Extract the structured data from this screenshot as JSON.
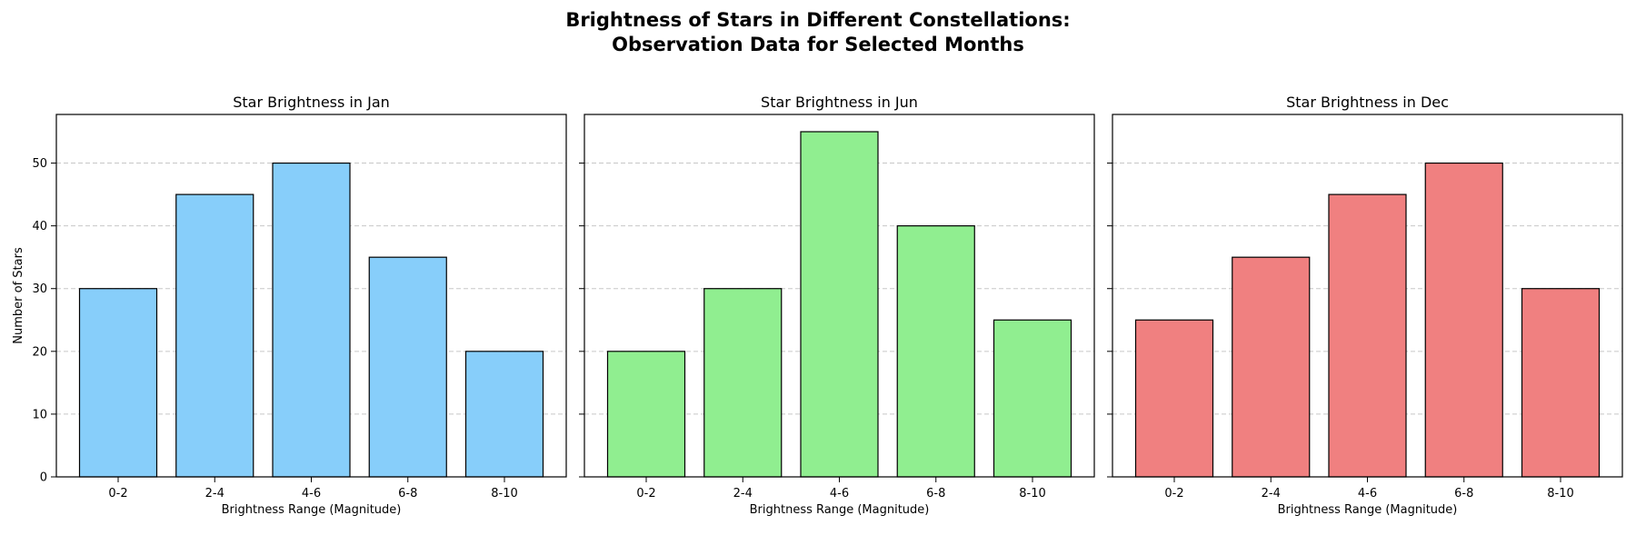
{
  "figure": {
    "title_line1": "Brightness of Stars in Different Constellations:",
    "title_line2": "Observation Data for Selected Months"
  },
  "chart_data": [
    {
      "type": "bar",
      "title": "Star Brightness in Jan",
      "xlabel": "Brightness Range (Magnitude)",
      "ylabel": "Number of Stars",
      "categories": [
        "0-2",
        "2-4",
        "4-6",
        "6-8",
        "8-10"
      ],
      "values": [
        30,
        45,
        50,
        35,
        20
      ],
      "color": "#87CEFA",
      "ylim": [
        0,
        57.75
      ],
      "yticks": [
        0,
        10,
        20,
        30,
        40,
        50
      ],
      "grid": "y-dashed"
    },
    {
      "type": "bar",
      "title": "Star Brightness in Jun",
      "xlabel": "Brightness Range (Magnitude)",
      "ylabel": "",
      "categories": [
        "0-2",
        "2-4",
        "4-6",
        "6-8",
        "8-10"
      ],
      "values": [
        20,
        30,
        55,
        40,
        25
      ],
      "color": "#90EE90",
      "ylim": [
        0,
        57.75
      ],
      "yticks": [
        0,
        10,
        20,
        30,
        40,
        50
      ],
      "grid": "y-dashed"
    },
    {
      "type": "bar",
      "title": "Star Brightness in Dec",
      "xlabel": "Brightness Range (Magnitude)",
      "ylabel": "",
      "categories": [
        "0-2",
        "2-4",
        "4-6",
        "6-8",
        "8-10"
      ],
      "values": [
        25,
        35,
        45,
        50,
        30
      ],
      "color": "#F08080",
      "ylim": [
        0,
        57.75
      ],
      "yticks": [
        0,
        10,
        20,
        30,
        40,
        50
      ],
      "grid": "y-dashed"
    }
  ]
}
